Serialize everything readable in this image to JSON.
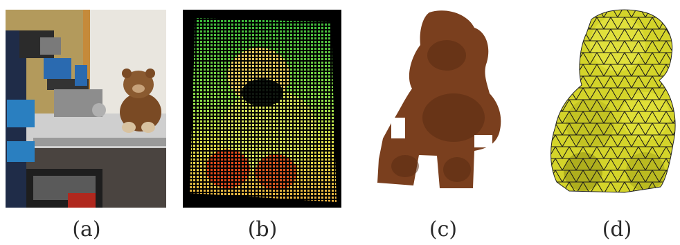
{
  "figure": {
    "panels": [
      {
        "id": "a",
        "caption": "(a)",
        "content": "robot-arm-with-teddy-bear-photo"
      },
      {
        "id": "b",
        "caption": "(b)",
        "content": "colored-point-cloud"
      },
      {
        "id": "c",
        "caption": "(c)",
        "content": "textured-surface-reconstruction"
      },
      {
        "id": "d",
        "caption": "(d)",
        "content": "triangle-mesh-model"
      }
    ]
  },
  "colors": {
    "bear_brown": "#7a3f1e",
    "mesh_yellow": "#d8d82a",
    "cloud_green": "#5fd04a",
    "cloud_red": "#d83a1a",
    "cloud_bg": "#000000"
  }
}
